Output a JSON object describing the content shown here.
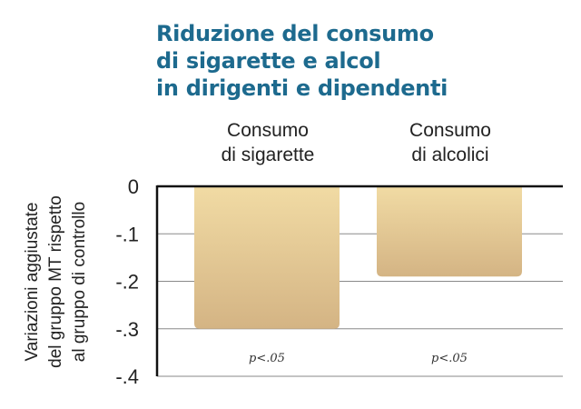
{
  "chart_data": {
    "type": "bar",
    "title_lines": [
      "Riduzione del consumo",
      "di sigarette e alcol",
      "in dirigenti e dipendenti"
    ],
    "categories": [
      [
        "Consumo",
        "di sigarette"
      ],
      [
        "Consumo",
        "di alcolici"
      ]
    ],
    "values": [
      -0.3,
      -0.19
    ],
    "annotations": [
      "p<.05",
      "p<.05"
    ],
    "ylabel_lines": [
      "Variazioni aggiustate",
      "del gruppo MT rispetto",
      "al gruppo di controllo"
    ],
    "yticks": [
      0,
      -0.1,
      -0.2,
      -0.3,
      -0.4
    ],
    "ytick_labels": [
      "0",
      "-.1",
      "-.2",
      "-.3",
      "-.4"
    ],
    "ylim": [
      -0.4,
      0
    ],
    "grid": true,
    "colors": {
      "title": "#1d6a8e",
      "bar_top": "#f1dba4",
      "bar_bottom": "#d4b484"
    }
  }
}
